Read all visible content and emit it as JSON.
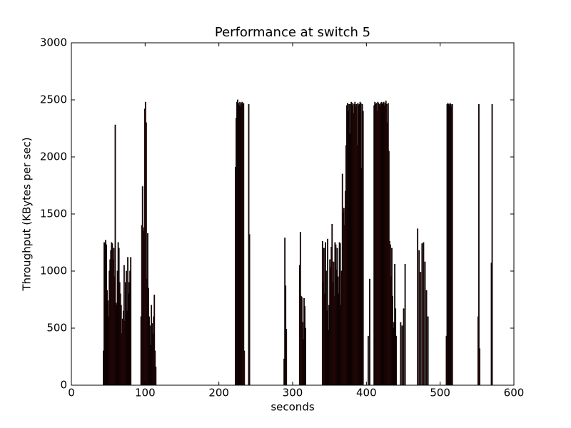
{
  "chart_data": {
    "type": "bar",
    "title": "Performance at switch 5",
    "x_label": "seconds",
    "y_label": "Throughput (KBytes per sec)",
    "xlim": [
      0,
      600
    ],
    "xticks": [
      0,
      100,
      200,
      300,
      400,
      500,
      600
    ],
    "ylim": [
      0,
      3000
    ],
    "yticks": [
      0,
      500,
      1000,
      1500,
      2000,
      2500,
      3000
    ],
    "color": "#8b1a1a",
    "edge_color": "#000000",
    "x": [
      43,
      44,
      45,
      46,
      47,
      48,
      49,
      50,
      51,
      52,
      53,
      54,
      55,
      56,
      57,
      58,
      59,
      60,
      61,
      62,
      63,
      64,
      65,
      66,
      67,
      68,
      69,
      70,
      71,
      72,
      73,
      74,
      75,
      76,
      77,
      78,
      79,
      80,
      94,
      95,
      96,
      97,
      98,
      99,
      100,
      101,
      102,
      103,
      104,
      105,
      106,
      107,
      108,
      109,
      110,
      111,
      112,
      113,
      114,
      222,
      223,
      224,
      225,
      226,
      227,
      228,
      229,
      230,
      231,
      232,
      233,
      234,
      240,
      241,
      288,
      289,
      290,
      291,
      309,
      310,
      311,
      312,
      313,
      314,
      315,
      316,
      317,
      340,
      341,
      342,
      343,
      344,
      345,
      346,
      347,
      348,
      349,
      350,
      351,
      352,
      353,
      354,
      355,
      356,
      357,
      358,
      359,
      360,
      361,
      362,
      363,
      364,
      365,
      366,
      367,
      368,
      369,
      370,
      371,
      372,
      373,
      374,
      375,
      376,
      377,
      378,
      379,
      380,
      381,
      382,
      383,
      384,
      385,
      386,
      387,
      388,
      389,
      390,
      391,
      392,
      393,
      394,
      395,
      402,
      404,
      410,
      411,
      412,
      413,
      414,
      415,
      416,
      417,
      418,
      419,
      420,
      421,
      422,
      423,
      424,
      425,
      426,
      427,
      428,
      429,
      430,
      431,
      432,
      433,
      434,
      435,
      436,
      437,
      438,
      439,
      440,
      446,
      448,
      450,
      452,
      469,
      471,
      473,
      475,
      477,
      479,
      481,
      483,
      508,
      509,
      510,
      511,
      512,
      513,
      514,
      515,
      516,
      551,
      552,
      553,
      569,
      570
    ],
    "values": [
      300,
      1250,
      1240,
      1270,
      1230,
      830,
      740,
      600,
      1000,
      1100,
      1180,
      1250,
      1240,
      1100,
      1200,
      950,
      2280,
      720,
      700,
      1000,
      1250,
      1200,
      900,
      800,
      700,
      450,
      580,
      650,
      1050,
      560,
      900,
      1000,
      650,
      1120,
      800,
      900,
      1000,
      1120,
      600,
      1400,
      1740,
      1380,
      1350,
      2420,
      2480,
      2300,
      930,
      1330,
      850,
      600,
      520,
      350,
      700,
      540,
      450,
      600,
      790,
      300,
      160,
      1910,
      2340,
      2480,
      2500,
      2470,
      2450,
      2480,
      2440,
      2470,
      2480,
      2460,
      2470,
      300,
      2460,
      1320,
      230,
      1290,
      870,
      490,
      1050,
      1340,
      780,
      770,
      550,
      400,
      760,
      690,
      500,
      1260,
      900,
      1200,
      800,
      1250,
      1000,
      650,
      1280,
      480,
      700,
      1100,
      1030,
      1210,
      1410,
      900,
      1080,
      780,
      1250,
      1230,
      1010,
      1200,
      950,
      800,
      1250,
      1240,
      700,
      1000,
      1850,
      1510,
      1550,
      1400,
      1700,
      2100,
      2450,
      2470,
      2400,
      2460,
      2200,
      2460,
      2480,
      2450,
      2470,
      2380,
      2460,
      2480,
      2440,
      2460,
      2100,
      2470,
      2450,
      2460,
      2480,
      2470,
      1900,
      2460,
      2400,
      430,
      930,
      2450,
      2480,
      2460,
      2470,
      2400,
      2480,
      2470,
      2460,
      2440,
      2470,
      2480,
      2460,
      2470,
      2480,
      2450,
      2470,
      2490,
      2460,
      2300,
      2470,
      2050,
      1260,
      1230,
      950,
      1200,
      780,
      500,
      550,
      1060,
      670,
      430,
      550,
      520,
      670,
      1060,
      1370,
      1180,
      990,
      1240,
      1250,
      1080,
      830,
      600,
      430,
      2460,
      2470,
      2460,
      2450,
      2470,
      2460,
      2440,
      2460,
      600,
      2460,
      320,
      1070,
      2460
    ]
  }
}
